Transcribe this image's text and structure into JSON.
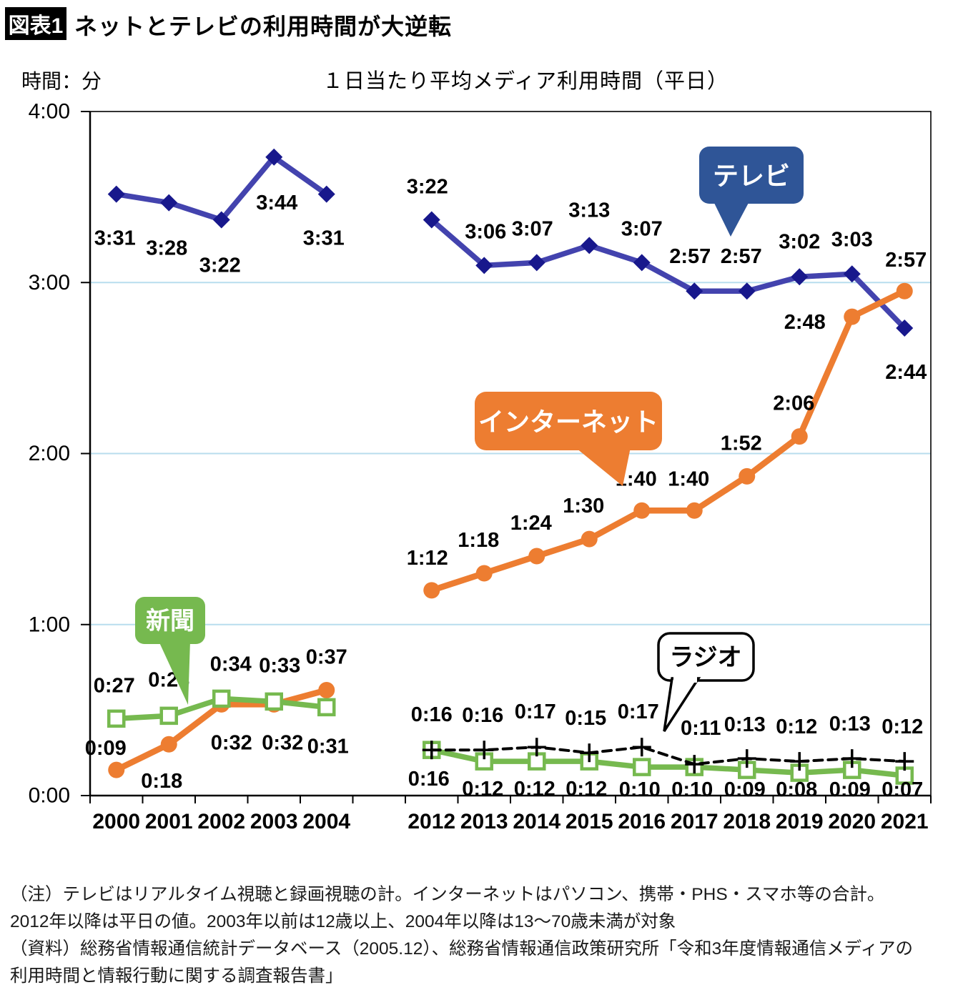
{
  "header": {
    "tag": "図表1",
    "title": "ネットとテレビの利用時間が大逆転"
  },
  "axis_unit_label": "時間：分",
  "chart_title": "１日当たり平均メディア利用時間（平日）",
  "chart_data": {
    "type": "line",
    "title": "１日当たり平均メディア利用時間（平日）",
    "ylabel": "時間：分",
    "grid": "horizontal light-blue lines at 1:00, 2:00, 3:00",
    "grid_color": "#B8DDEE",
    "y_axis": {
      "tick_labels": [
        "4:00",
        "3:00",
        "2:00",
        "1:00",
        "0:00"
      ],
      "tick_minutes": [
        240,
        180,
        120,
        60,
        0
      ],
      "range_minutes": [
        0,
        240
      ]
    },
    "x_axis": {
      "group1_years": [
        "2000",
        "2001",
        "2002",
        "2003",
        "2004"
      ],
      "group2_years": [
        "2012",
        "2013",
        "2014",
        "2015",
        "2016",
        "2017",
        "2018",
        "2019",
        "2020",
        "2021"
      ]
    },
    "series": [
      {
        "id": "tv",
        "name": "テレビ",
        "line_color": "#4343AE",
        "marker": "diamond",
        "marker_color": "#18188C",
        "line_width": 7.5,
        "group1": {
          "labels": [
            "3:31",
            "3:28",
            "3:22",
            "3:44",
            "3:31"
          ],
          "minutes": [
            211,
            208,
            202,
            224,
            211
          ]
        },
        "group2": {
          "labels": [
            "3:22",
            "3:06",
            "3:07",
            "3:13",
            "3:07",
            "2:57",
            "2:57",
            "3:02",
            "3:03",
            "2:44"
          ],
          "minutes": [
            202,
            186,
            187,
            193,
            187,
            177,
            177,
            182,
            183,
            164
          ]
        }
      },
      {
        "id": "internet",
        "name": "インターネット",
        "line_color": "#ED7D31",
        "marker": "circle",
        "marker_color": "#ED7D31",
        "line_width": 8.5,
        "group1": {
          "labels": [
            "0:09",
            "0:18",
            "0:32",
            "0:32",
            "0:37"
          ],
          "minutes": [
            9,
            18,
            32,
            32,
            37
          ]
        },
        "group2": {
          "labels": [
            "1:12",
            "1:18",
            "1:24",
            "1:30",
            "1:40",
            "1:40",
            "1:52",
            "2:06",
            "2:48",
            "2:57"
          ],
          "minutes": [
            72,
            78,
            84,
            90,
            100,
            100,
            112,
            126,
            168,
            177
          ]
        }
      },
      {
        "id": "newspaper",
        "name": "新聞",
        "line_color": "#76B94F",
        "marker": "square-open",
        "marker_color": "#76B94F",
        "line_width": 7.5,
        "group1": {
          "labels": [
            "0:27",
            "0:28",
            "0:34",
            "0:33",
            "0:31"
          ],
          "minutes": [
            27,
            28,
            34,
            33,
            31
          ]
        },
        "group2": {
          "labels": [
            "0:16",
            "0:12",
            "0:12",
            "0:12",
            "0:10",
            "0:10",
            "0:09",
            "0:08",
            "0:09",
            "0:07"
          ],
          "minutes": [
            16,
            12,
            12,
            12,
            10,
            10,
            9,
            8,
            9,
            7
          ]
        }
      },
      {
        "id": "radio",
        "name": "ラジオ",
        "line_color": "#000000",
        "marker": "plus",
        "marker_color": "#000000",
        "line_width": 4,
        "dash": "12 8",
        "group1": null,
        "group2": {
          "labels": [
            "0:16",
            "0:16",
            "0:17",
            "0:15",
            "0:17",
            "0:11",
            "0:13",
            "0:12",
            "0:13",
            "0:12"
          ],
          "minutes": [
            16,
            16,
            17,
            15,
            17,
            11,
            13,
            12,
            13,
            12
          ]
        }
      }
    ],
    "callouts": [
      {
        "id": "tv",
        "label": "テレビ",
        "fill": "#2F5597",
        "text_color": "#FFFFFF",
        "border": null
      },
      {
        "id": "internet",
        "label": "インターネット",
        "fill": "#ED7D31",
        "text_color": "#FFFFFF",
        "border": null
      },
      {
        "id": "newspaper",
        "label": "新聞",
        "fill": "#76B94F",
        "text_color": "#FFFFFF",
        "border": null
      },
      {
        "id": "radio",
        "label": "ラジオ",
        "fill": "#FFFFFF",
        "text_color": "#000000",
        "border": "#000000"
      }
    ]
  },
  "footnotes": [
    "（注）テレビはリアルタイム視聴と録画視聴の計。インターネットはパソコン、携帯・PHS・スマホ等の合計。",
    "2012年以降は平日の値。2003年以前は12歳以上、2004年以降は13～70歳未満が対象",
    "（資料）総務省情報通信統計データベース（2005.12）、総務省情報通信政策研究所「令和3年度情報通信メディアの",
    "利用時間と情報行動に関する調査報告書」"
  ]
}
